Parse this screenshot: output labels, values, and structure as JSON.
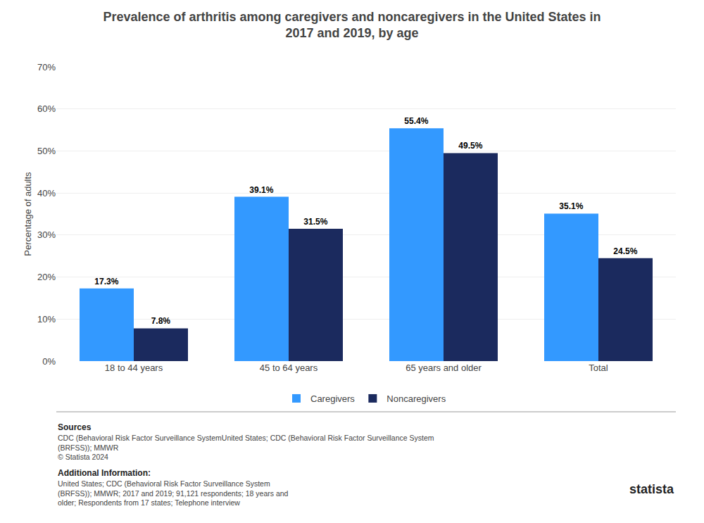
{
  "chart_data": {
    "type": "bar",
    "title": "Prevalence of arthritis among caregivers and noncaregivers in the United States in\n2017 and 2019, by age",
    "categories": [
      "18 to 44 years",
      "45 to 64 years",
      "65 years and older",
      "Total"
    ],
    "series": [
      {
        "name": "Caregivers",
        "color": "#3399FF",
        "values": [
          17.3,
          39.1,
          55.4,
          35.1
        ],
        "value_labels": [
          "17.3%",
          "39.1%",
          "55.4%",
          "35.1%"
        ]
      },
      {
        "name": "Noncaregivers",
        "color": "#1B2A5E",
        "values": [
          7.8,
          31.5,
          49.5,
          24.5
        ],
        "value_labels": [
          "7.8%",
          "31.5%",
          "49.5%",
          "24.5%"
        ]
      }
    ],
    "ylabel": "Percentage of adults",
    "ylim": [
      0,
      70
    ],
    "yticks": [
      {
        "value": 0,
        "label": "0%"
      },
      {
        "value": 10,
        "label": "10%"
      },
      {
        "value": 20,
        "label": "20%"
      },
      {
        "value": 30,
        "label": "30%"
      },
      {
        "value": 40,
        "label": "40%"
      },
      {
        "value": 50,
        "label": "50%"
      },
      {
        "value": 60,
        "label": "60%"
      },
      {
        "value": 70,
        "label": "70%"
      }
    ],
    "grid": true,
    "legend": "bottom",
    "data_labels": true,
    "annotations": [
      "Sources",
      "CDC (Behavioral Risk Factor Surveillance SystemUnited States; CDC (Behavioral Risk Factor Surveillance System\n(BRFSS)); MMWR\n© Statista 2024",
      "Additional Information:",
      "United States; CDC (Behavioral Risk Factor Surveillance System\n(BRFSS)); MMWR; 2017 and 2019; 91,121 respondents; 18 years and\nolder; Respondents from 17 states; Telephone interview",
      "statista"
    ]
  }
}
